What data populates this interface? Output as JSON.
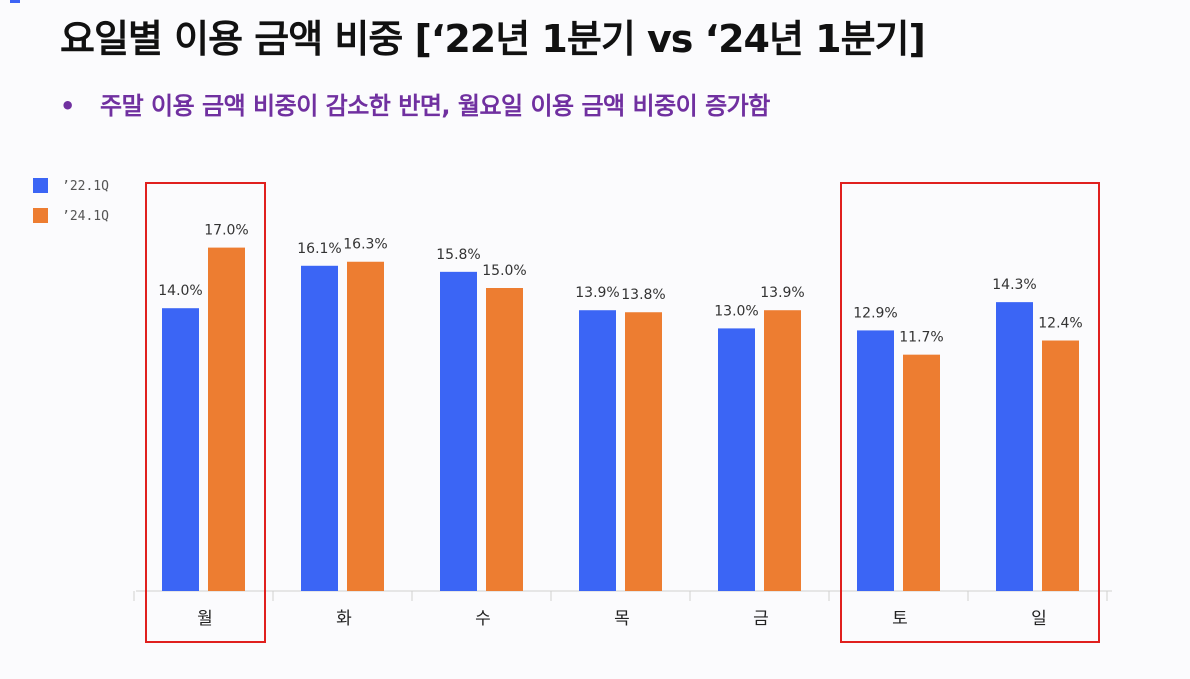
{
  "header": {
    "title": "요일별 이용 금액 비중 [‘22년 1분기 vs ‘24년 1분기]",
    "subtitle_bullet": "•",
    "subtitle": "주말 이용 금액 비중이 감소한 반면, 월요일 이용 금액 비중이 증가함"
  },
  "colors": {
    "series_2022": "#3b65f5",
    "series_2024": "#ed7d31",
    "highlight": "#e0201e",
    "subtitle": "#7030a0"
  },
  "chart_data": {
    "type": "bar",
    "categories": [
      "월",
      "화",
      "수",
      "목",
      "금",
      "토",
      "일"
    ],
    "series": [
      {
        "name": "’22.1Q",
        "values": [
          14.0,
          16.1,
          15.8,
          13.9,
          13.0,
          12.9,
          14.3
        ],
        "labels": [
          "14.0%",
          "16.1%",
          "15.8%",
          "13.9%",
          "13.0%",
          "12.9%",
          "14.3%"
        ]
      },
      {
        "name": "’24.1Q",
        "values": [
          17.0,
          16.3,
          15.0,
          13.8,
          13.9,
          11.7,
          12.4
        ],
        "labels": [
          "17.0%",
          "16.3%",
          "15.0%",
          "13.8%",
          "13.9%",
          "11.7%",
          "12.4%"
        ]
      }
    ],
    "ylim": [
      0,
      20
    ],
    "legend_position": "top-left",
    "highlighted_categories": [
      "월",
      "토",
      "일"
    ]
  }
}
